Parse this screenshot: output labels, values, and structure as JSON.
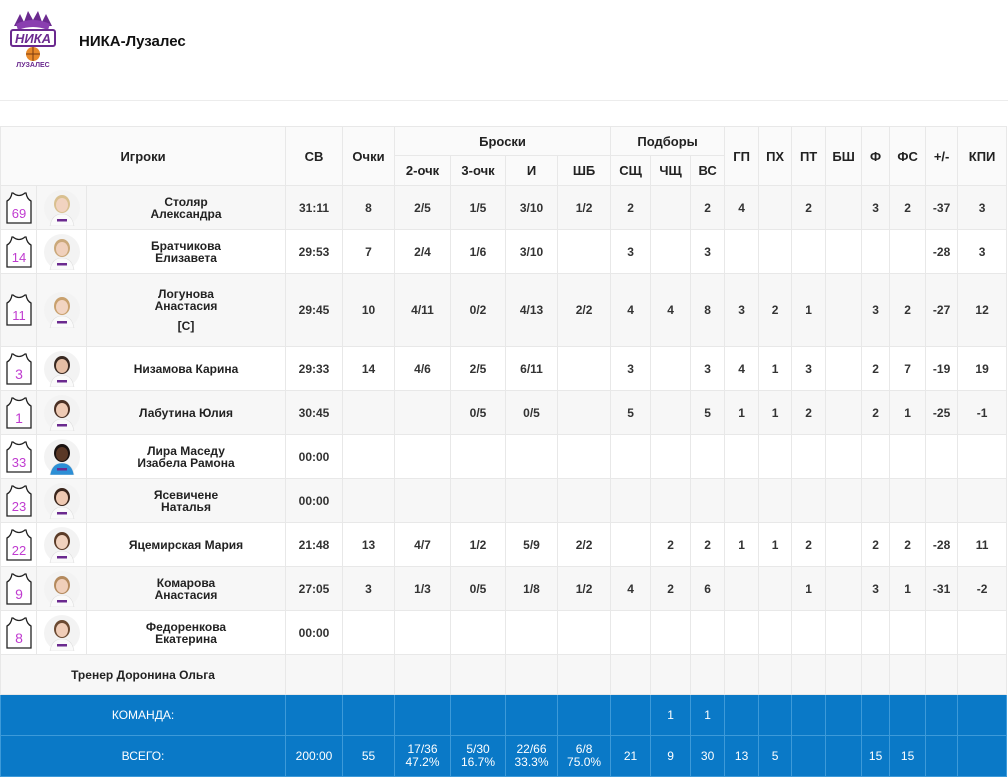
{
  "team": {
    "name": "НИКА-Лузалес",
    "logo_text_main": "НИКА",
    "logo_text_sub": "ЛУЗАЛЕС"
  },
  "columns": {
    "players": "Игроки",
    "minutes": "СВ",
    "points": "Очки",
    "shots": "Броски",
    "two_pt": "2-очк",
    "three_pt": "3-очк",
    "fg": "И",
    "ft": "ШБ",
    "rebounds": "Подборы",
    "reb_def": "СЩ",
    "reb_off": "ЧЩ",
    "reb_total": "ВС",
    "assists": "ГП",
    "turnovers": "ПХ",
    "steals": "ПТ",
    "blocks": "БШ",
    "fouls": "Ф",
    "fouls_drawn": "ФС",
    "plus_minus": "+/-",
    "efficiency": "КПИ"
  },
  "players": [
    {
      "number": "69",
      "name1": "Столяр",
      "name2": "Александра",
      "captain": "",
      "min": "31:11",
      "pts": "8",
      "p2": "2/5",
      "p3": "1/5",
      "fg": "3/10",
      "ft": "1/2",
      "sd": "2",
      "so": "",
      "rt": "2",
      "as": "4",
      "to": "",
      "st": "2",
      "bl": "",
      "pf": "3",
      "fd": "2",
      "pm": "-37",
      "eff": "3",
      "photo_skin": "#f1d3c0",
      "photo_hair": "#d9c090"
    },
    {
      "number": "14",
      "name1": "Братчикова",
      "name2": "Елизавета",
      "captain": "",
      "min": "29:53",
      "pts": "7",
      "p2": "2/4",
      "p3": "1/6",
      "fg": "3/10",
      "ft": "",
      "sd": "3",
      "so": "",
      "rt": "3",
      "as": "",
      "to": "",
      "st": "",
      "bl": "",
      "pf": "",
      "fd": "",
      "pm": "-28",
      "eff": "3",
      "photo_skin": "#f0d0bc",
      "photo_hair": "#caa87a"
    },
    {
      "number": "11",
      "name1": "Логунова",
      "name2": "Анастасия",
      "captain": "[C]",
      "min": "29:45",
      "pts": "10",
      "p2": "4/11",
      "p3": "0/2",
      "fg": "4/13",
      "ft": "2/2",
      "sd": "4",
      "so": "4",
      "rt": "8",
      "as": "3",
      "to": "2",
      "st": "1",
      "bl": "",
      "pf": "3",
      "fd": "2",
      "pm": "-27",
      "eff": "12",
      "photo_skin": "#f2d4c2",
      "photo_hair": "#c9a16e"
    },
    {
      "number": "3",
      "name1": "Низамова Карина",
      "name2": "",
      "captain": "",
      "min": "29:33",
      "pts": "14",
      "p2": "4/6",
      "p3": "2/5",
      "fg": "6/11",
      "ft": "",
      "sd": "3",
      "so": "",
      "rt": "3",
      "as": "4",
      "to": "1",
      "st": "3",
      "bl": "",
      "pf": "2",
      "fd": "7",
      "pm": "-19",
      "eff": "19",
      "photo_skin": "#e6bea4",
      "photo_hair": "#3a2a22"
    },
    {
      "number": "1",
      "name1": "Лабутина Юлия",
      "name2": "",
      "captain": "",
      "min": "30:45",
      "pts": "",
      "p2": "",
      "p3": "0/5",
      "fg": "0/5",
      "ft": "",
      "sd": "5",
      "so": "",
      "rt": "5",
      "as": "1",
      "to": "1",
      "st": "2",
      "bl": "",
      "pf": "2",
      "fd": "1",
      "pm": "-25",
      "eff": "-1",
      "photo_skin": "#eecab4",
      "photo_hair": "#4a3024"
    },
    {
      "number": "33",
      "name1": "Лира Маседу",
      "name2": "Изабела Рамона",
      "captain": "",
      "min": "00:00",
      "pts": "",
      "p2": "",
      "p3": "",
      "fg": "",
      "ft": "",
      "sd": "",
      "so": "",
      "rt": "",
      "as": "",
      "to": "",
      "st": "",
      "bl": "",
      "pf": "",
      "fd": "",
      "pm": "",
      "eff": "",
      "photo_skin": "#5a3826",
      "photo_hair": "#1a1210"
    },
    {
      "number": "23",
      "name1": "Ясевичене",
      "name2": "Наталья",
      "captain": "",
      "min": "00:00",
      "pts": "",
      "p2": "",
      "p3": "",
      "fg": "",
      "ft": "",
      "sd": "",
      "so": "",
      "rt": "",
      "as": "",
      "to": "",
      "st": "",
      "bl": "",
      "pf": "",
      "fd": "",
      "pm": "",
      "eff": "",
      "photo_skin": "#efc9b2",
      "photo_hair": "#3b261c"
    },
    {
      "number": "22",
      "name1": "Яцемирская Мария",
      "name2": "",
      "captain": "",
      "min": "21:48",
      "pts": "13",
      "p2": "4/7",
      "p3": "1/2",
      "fg": "5/9",
      "ft": "2/2",
      "sd": "",
      "so": "2",
      "rt": "2",
      "as": "1",
      "to": "1",
      "st": "2",
      "bl": "",
      "pf": "2",
      "fd": "2",
      "pm": "-28",
      "eff": "11",
      "photo_skin": "#f1d2be",
      "photo_hair": "#5b3c28"
    },
    {
      "number": "9",
      "name1": "Комарова",
      "name2": "Анастасия",
      "captain": "",
      "min": "27:05",
      "pts": "3",
      "p2": "1/3",
      "p3": "0/5",
      "fg": "1/8",
      "ft": "1/2",
      "sd": "4",
      "so": "2",
      "rt": "6",
      "as": "",
      "to": "",
      "st": "1",
      "bl": "",
      "pf": "3",
      "fd": "1",
      "pm": "-31",
      "eff": "-2",
      "photo_skin": "#f0cfba",
      "photo_hair": "#b48a5e"
    },
    {
      "number": "8",
      "name1": "Федоренкова",
      "name2": "Екатерина",
      "captain": "",
      "min": "00:00",
      "pts": "",
      "p2": "",
      "p3": "",
      "fg": "",
      "ft": "",
      "sd": "",
      "so": "",
      "rt": "",
      "as": "",
      "to": "",
      "st": "",
      "bl": "",
      "pf": "",
      "fd": "",
      "pm": "",
      "eff": "",
      "photo_skin": "#f0cdb8",
      "photo_hair": "#6b4a32"
    }
  ],
  "coach": {
    "label": "Тренер Доронина Ольга"
  },
  "team_row": {
    "label": "КОМАНДА:",
    "so": "1",
    "rt": "1"
  },
  "totals": {
    "label": "ВСЕГО:",
    "min": "200:00",
    "pts": "55",
    "p2": "17/36",
    "p2_pct": "47.2%",
    "p3": "5/30",
    "p3_pct": "16.7%",
    "fg": "22/66",
    "fg_pct": "33.3%",
    "ft": "6/8",
    "ft_pct": "75.0%",
    "sd": "21",
    "so": "9",
    "rt": "30",
    "as": "13",
    "to": "5",
    "st": "",
    "bl": "",
    "pf": "15",
    "fd": "15",
    "pm": "",
    "eff": ""
  },
  "colors": {
    "jersey_number": "#c03bd0",
    "totals_bg": "#0a79c7",
    "logo_purple": "#6b2a8f"
  },
  "icons": {
    "jersey": "jersey-icon",
    "photo": "player-photo"
  }
}
